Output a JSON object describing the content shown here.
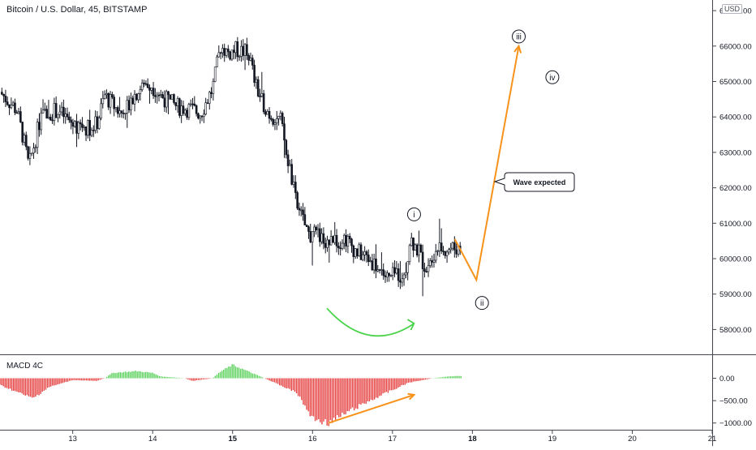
{
  "header": {
    "title": "Bitcoin / U.S. Dollar, 45, BITSTAMP",
    "currency_badge": "USD"
  },
  "indicator": {
    "title": "MACD 4C"
  },
  "colors": {
    "bull": "#131722",
    "bear": "#131722",
    "wave_arrow": "#f7931a",
    "curve_arrow": "#4cd34c",
    "macd_positive": "#5bd15b",
    "macd_negative": "#e53f3f",
    "macd_trend": "#f7931a",
    "axis_text": "#131722",
    "separator": "#434651"
  },
  "chart_data": [
    {
      "type": "candlestick",
      "title": "Bitcoin / U.S. Dollar, 45, BITSTAMP",
      "ylim": [
        57300,
        67300
      ],
      "xlim": [
        12.09,
        21.0
      ],
      "y_tick_labels": [
        "67000.00",
        "66000.00",
        "65000.00",
        "64000.00",
        "63000.00",
        "62000.00",
        "61000.00",
        "60000.00",
        "59000.00",
        "58000.00"
      ],
      "y_ticks": [
        67000,
        66000,
        65000,
        64000,
        63000,
        62000,
        61000,
        60000,
        59000,
        58000
      ],
      "x_ticks": [
        13,
        14,
        15,
        16,
        17,
        18,
        19,
        20,
        21
      ],
      "x_tick_labels": [
        "13",
        "14",
        "15",
        "16",
        "17",
        "18",
        "19",
        "20",
        "21"
      ],
      "bold_x_ticks": [
        15,
        18
      ],
      "anchors": [
        [
          12.09,
          64700
        ],
        [
          12.3,
          64200
        ],
        [
          12.4,
          63200
        ],
        [
          12.45,
          62600
        ],
        [
          12.6,
          64000
        ],
        [
          12.8,
          64200
        ],
        [
          13.0,
          63800
        ],
        [
          13.2,
          63700
        ],
        [
          13.3,
          63800
        ],
        [
          13.4,
          64600
        ],
        [
          13.6,
          64100
        ],
        [
          13.8,
          64700
        ],
        [
          13.95,
          65000
        ],
        [
          14.1,
          64600
        ],
        [
          14.3,
          64300
        ],
        [
          14.5,
          64200
        ],
        [
          14.6,
          64100
        ],
        [
          14.75,
          64800
        ],
        [
          14.85,
          66000
        ],
        [
          14.95,
          65800
        ],
        [
          15.05,
          65900
        ],
        [
          15.2,
          65800
        ],
        [
          15.3,
          64800
        ],
        [
          15.45,
          64100
        ],
        [
          15.6,
          63900
        ],
        [
          15.8,
          61500
        ],
        [
          15.95,
          60700
        ],
        [
          16.1,
          60600
        ],
        [
          16.25,
          60400
        ],
        [
          16.4,
          60600
        ],
        [
          16.55,
          60200
        ],
        [
          16.7,
          60000
        ],
        [
          16.8,
          59800
        ],
        [
          16.95,
          59400
        ],
        [
          17.05,
          59600
        ],
        [
          17.15,
          59500
        ],
        [
          17.22,
          60600
        ],
        [
          17.3,
          60300
        ],
        [
          17.4,
          59800
        ],
        [
          17.55,
          60300
        ],
        [
          17.7,
          60300
        ],
        [
          17.85,
          60300
        ]
      ]
    },
    {
      "type": "bar",
      "title": "MACD 4C",
      "ylim": [
        -1150,
        480
      ],
      "y_ticks": [
        0,
        -500,
        -1000
      ],
      "y_tick_labels": [
        "0.00",
        "−500.00",
        "−1000.00"
      ],
      "anchors": [
        [
          12.09,
          -150
        ],
        [
          12.5,
          -450
        ],
        [
          12.7,
          -200
        ],
        [
          13.0,
          -40
        ],
        [
          13.3,
          -60
        ],
        [
          13.4,
          0
        ],
        [
          13.5,
          120
        ],
        [
          13.8,
          160
        ],
        [
          14.0,
          120
        ],
        [
          14.1,
          40
        ],
        [
          14.4,
          0
        ],
        [
          14.5,
          -60
        ],
        [
          14.75,
          0
        ],
        [
          14.85,
          150
        ],
        [
          15.0,
          300
        ],
        [
          15.2,
          150
        ],
        [
          15.4,
          0
        ],
        [
          15.8,
          -320
        ],
        [
          16.0,
          -900
        ],
        [
          16.2,
          -1000
        ],
        [
          16.5,
          -700
        ],
        [
          16.8,
          -430
        ],
        [
          17.2,
          -100
        ],
        [
          17.5,
          0
        ],
        [
          17.7,
          40
        ],
        [
          17.85,
          50
        ]
      ]
    }
  ],
  "annotations": {
    "wave_labels": [
      {
        "text": "i",
        "x": 17.27,
        "y": 61250
      },
      {
        "text": "ii",
        "x": 18.12,
        "y": 58750
      },
      {
        "text": "iii",
        "x": 18.58,
        "y": 66270
      },
      {
        "text": "iv",
        "x": 19.0,
        "y": 65120
      }
    ],
    "callout_text": "Wave expected",
    "wave_path": [
      [
        17.78,
        60550
      ],
      [
        18.05,
        59400
      ],
      [
        18.58,
        66000
      ]
    ],
    "macd_trend": [
      [
        16.2,
        -1000
      ],
      [
        17.27,
        -370
      ]
    ],
    "curve_arrow": [
      [
        16.18,
        58600
      ],
      [
        16.7,
        57800
      ],
      [
        17.27,
        58170
      ]
    ]
  }
}
